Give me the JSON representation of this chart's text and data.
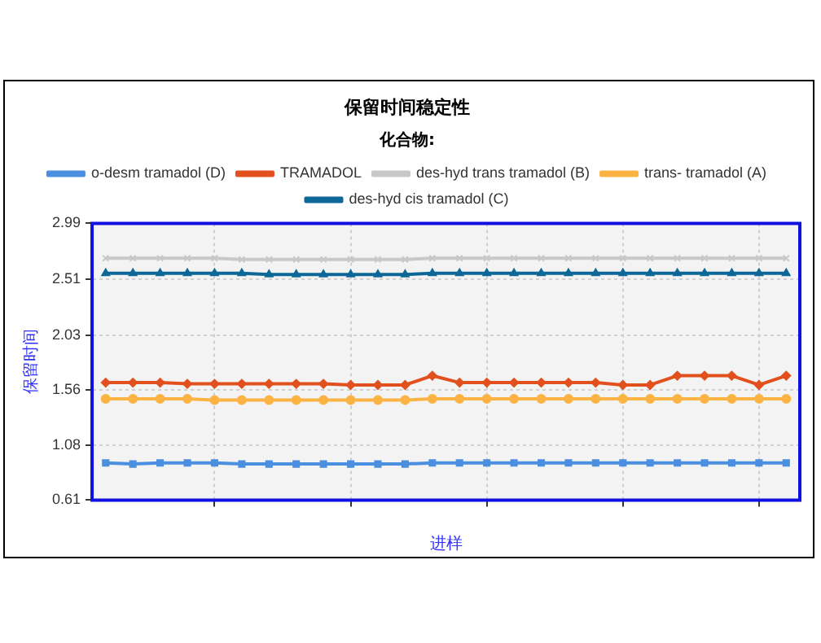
{
  "chart_data": {
    "type": "line",
    "title": "保留时间稳定性",
    "legend_title": "化合物:",
    "xlabel": "进样",
    "ylabel": "保留时间",
    "categories": [
      null,
      null,
      null,
      null,
      null,
      null,
      null,
      null,
      null,
      null,
      null,
      null,
      null,
      null,
      null,
      null,
      null,
      null,
      null,
      null,
      null,
      null,
      null,
      null,
      null,
      null
    ],
    "ylim": [
      0.61,
      2.99
    ],
    "yticks": [
      0.61,
      1.08,
      1.56,
      2.03,
      2.51,
      2.99
    ],
    "grid": true,
    "legend": "top",
    "series": [
      {
        "name": "o-desm tramadol (D)",
        "color": "#4a8fe0",
        "marker": "square",
        "values": [
          0.93,
          0.92,
          0.93,
          0.93,
          0.93,
          0.92,
          0.92,
          0.92,
          0.92,
          0.92,
          0.92,
          0.92,
          0.93,
          0.93,
          0.93,
          0.93,
          0.93,
          0.93,
          0.93,
          0.93,
          0.93,
          0.93,
          0.93,
          0.93,
          0.93,
          0.93
        ]
      },
      {
        "name": "TRAMADOL",
        "color": "#e2501e",
        "marker": "diamond",
        "values": [
          1.62,
          1.62,
          1.62,
          1.61,
          1.61,
          1.61,
          1.61,
          1.61,
          1.61,
          1.6,
          1.6,
          1.6,
          1.68,
          1.62,
          1.62,
          1.62,
          1.62,
          1.62,
          1.62,
          1.6,
          1.6,
          1.68,
          1.68,
          1.68,
          1.6,
          1.68
        ]
      },
      {
        "name": "des-hyd trans tramadol (B)",
        "color": "#c8c8c8",
        "marker": "cross",
        "values": [
          2.69,
          2.69,
          2.69,
          2.69,
          2.69,
          2.68,
          2.68,
          2.68,
          2.68,
          2.68,
          2.68,
          2.68,
          2.69,
          2.69,
          2.69,
          2.69,
          2.69,
          2.69,
          2.69,
          2.69,
          2.69,
          2.69,
          2.69,
          2.69,
          2.69,
          2.69
        ]
      },
      {
        "name": "trans- tramadol (A)",
        "color": "#fbb444",
        "marker": "circle",
        "values": [
          1.48,
          1.48,
          1.48,
          1.48,
          1.47,
          1.47,
          1.47,
          1.47,
          1.47,
          1.47,
          1.47,
          1.47,
          1.48,
          1.48,
          1.48,
          1.48,
          1.48,
          1.48,
          1.48,
          1.48,
          1.48,
          1.48,
          1.48,
          1.48,
          1.48,
          1.48
        ]
      },
      {
        "name": "des-hyd cis tramadol (C)",
        "color": "#0e6897",
        "marker": "triangle",
        "values": [
          2.56,
          2.56,
          2.56,
          2.56,
          2.56,
          2.56,
          2.55,
          2.55,
          2.55,
          2.55,
          2.55,
          2.55,
          2.56,
          2.56,
          2.56,
          2.56,
          2.56,
          2.56,
          2.56,
          2.56,
          2.56,
          2.56,
          2.56,
          2.56,
          2.56,
          2.56
        ]
      }
    ]
  }
}
